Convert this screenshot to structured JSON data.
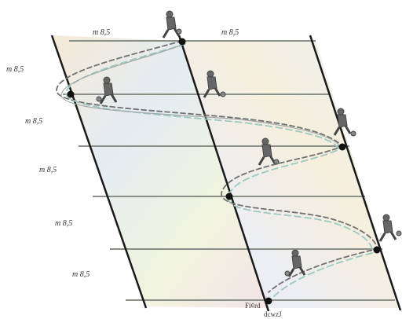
{
  "labels": {
    "top_1": "m 8,5",
    "top_2": "m 8,5",
    "row_1": "m 8,5",
    "row_2": "m 8,5",
    "row_3": "m 8,5",
    "row_4": "m 8,5",
    "row_5": "m 8,5",
    "start_1": "Fi¢rd",
    "start_2": "dcwzJ"
  },
  "colors": {
    "boundary": "#1a1a1a",
    "crossline": "#8a9088",
    "path_dark": "#707070",
    "path_light": "#9fc7c0",
    "player": "#555555"
  },
  "icons": [
    "player-figure",
    "cone-marker"
  ]
}
